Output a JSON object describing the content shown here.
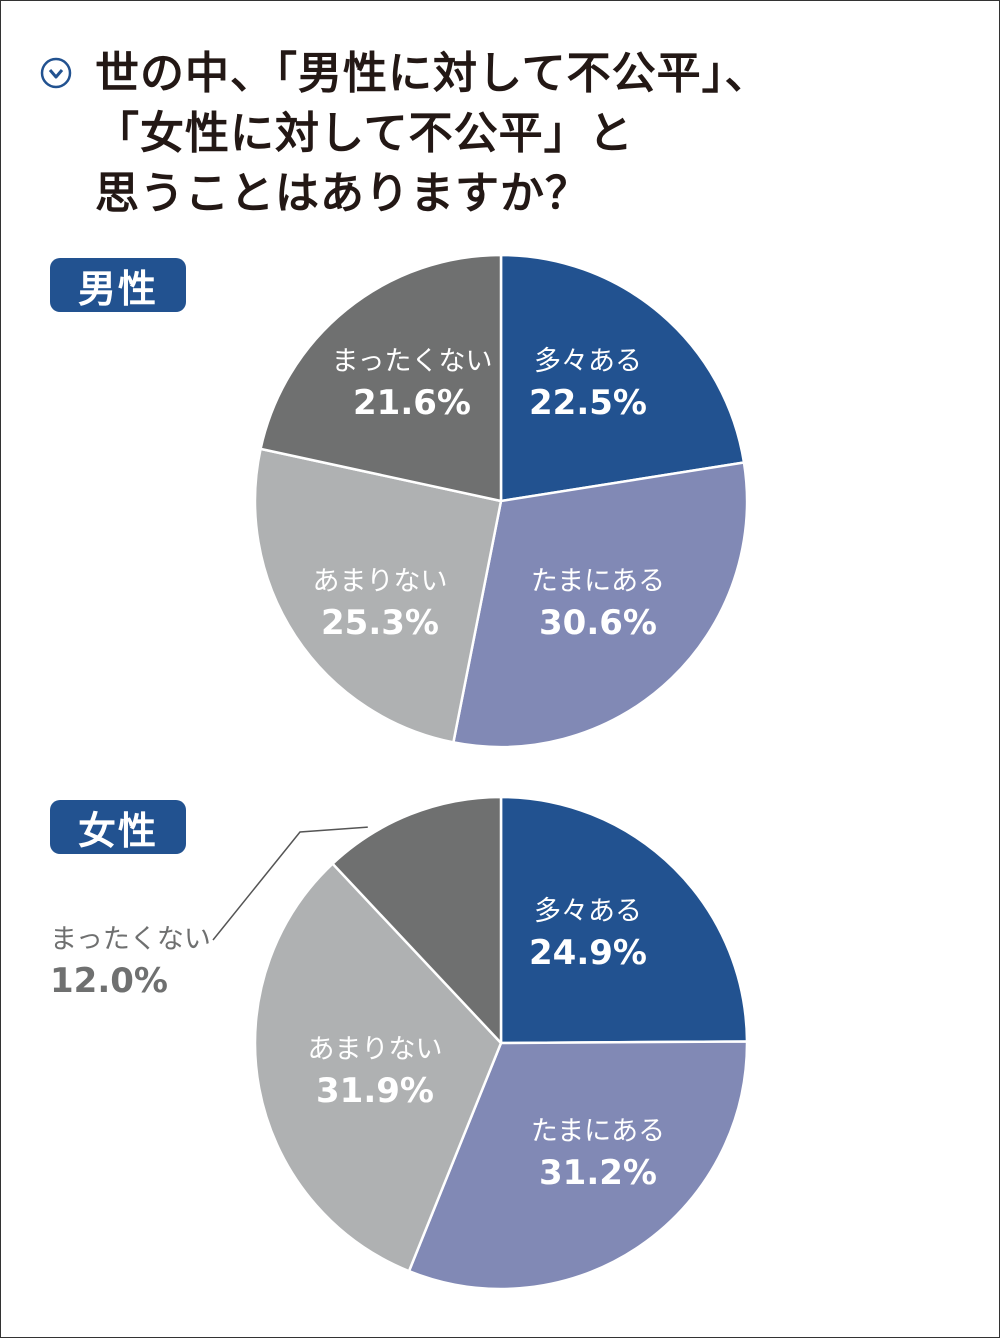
{
  "title": {
    "line1": "世の中、「男性に対して不公平」、",
    "line2": "「女性に対して不公平」と",
    "line3": "思うことはありますか？"
  },
  "icon": "chevron-down-circle-icon",
  "colors": {
    "frequent": "#225290",
    "sometimes": "#8189b5",
    "rarely": "#afb1b2",
    "never": "#6f7070",
    "accent": "#225290",
    "outside_label": "#6f7070"
  },
  "chart_data": [
    {
      "type": "pie",
      "group_label": "男性",
      "slices": [
        {
          "label": "多々ある",
          "value": 22.5,
          "value_label": "22.5%"
        },
        {
          "label": "たまにある",
          "value": 30.6,
          "value_label": "30.6%"
        },
        {
          "label": "あまりない",
          "value": 25.3,
          "value_label": "25.3%"
        },
        {
          "label": "まったくない",
          "value": 21.6,
          "value_label": "21.6%"
        }
      ]
    },
    {
      "type": "pie",
      "group_label": "女性",
      "slices": [
        {
          "label": "多々ある",
          "value": 24.9,
          "value_label": "24.9%"
        },
        {
          "label": "たまにある",
          "value": 31.2,
          "value_label": "31.2%"
        },
        {
          "label": "あまりない",
          "value": 31.9,
          "value_label": "31.9%"
        },
        {
          "label": "まったくない",
          "value": 12.0,
          "value_label": "12.0%"
        }
      ]
    }
  ]
}
